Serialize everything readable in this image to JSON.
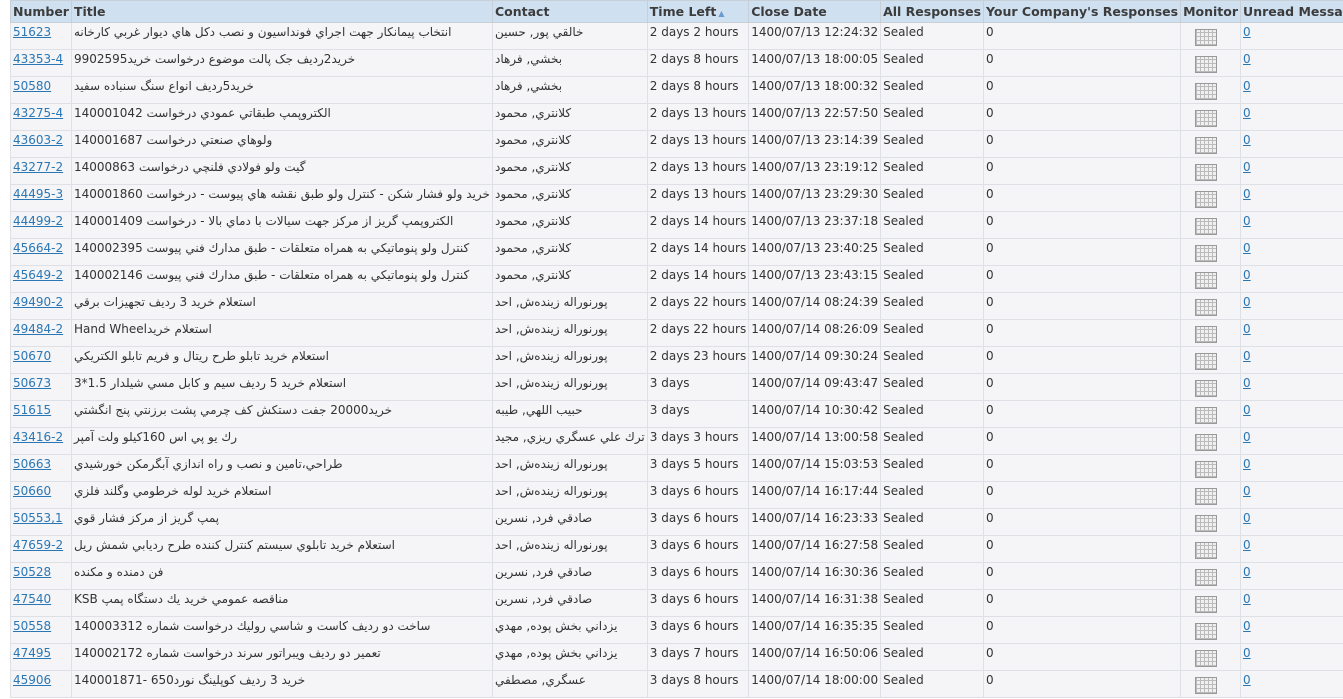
{
  "columns": [
    "Number",
    "Title",
    "Contact",
    "Time Left",
    "Close Date",
    "All Responses",
    "Your Company's Responses",
    "Monitor",
    "Unread Messages"
  ],
  "sort_indicator": "▲",
  "rows": [
    {
      "number": "51623",
      "title": "انتخاب پيمانكار جهت اجراي فونداسيون و نصب دكل هاي ديوار غربي كارخانه",
      "contact": "خالقي پور, حسين",
      "time_left": "2 days 2 hours",
      "close_date": "1400/07/13 12:24:32",
      "all": "Sealed",
      "yours": "0",
      "unread": "0"
    },
    {
      "number": "43353-4",
      "title": "خريد2رديف جک پالت موضوع درخواست خريد9902595",
      "contact": "بخشي, فرهاد",
      "time_left": "2 days 8 hours",
      "close_date": "1400/07/13 18:00:05",
      "all": "Sealed",
      "yours": "0",
      "unread": "0"
    },
    {
      "number": "50580",
      "title": "خريد5رديف انواع سنگ سنباده سفيد",
      "contact": "بخشي, فرهاد",
      "time_left": "2 days 8 hours",
      "close_date": "1400/07/13 18:00:32",
      "all": "Sealed",
      "yours": "0",
      "unread": "0"
    },
    {
      "number": "43275-4",
      "title": "الكتروپمپ طبقاتي عمودي درخواست 140001042",
      "contact": "كلانتري, محمود",
      "time_left": "2 days 13 hours",
      "close_date": "1400/07/13 22:57:50",
      "all": "Sealed",
      "yours": "0",
      "unread": "0"
    },
    {
      "number": "43603-2",
      "title": "ولوهاي صنعتي درخواست 140001687",
      "contact": "كلانتري, محمود",
      "time_left": "2 days 13 hours",
      "close_date": "1400/07/13 23:14:39",
      "all": "Sealed",
      "yours": "0",
      "unread": "0"
    },
    {
      "number": "43277-2",
      "title": "گيت ولو فولادي فلنچي درخواست 14000863",
      "contact": "كلانتري, محمود",
      "time_left": "2 days 13 hours",
      "close_date": "1400/07/13 23:19:12",
      "all": "Sealed",
      "yours": "0",
      "unread": "0"
    },
    {
      "number": "44495-3",
      "title": "خريد ولو فشار شكن - كنترل ولو طبق نقشه هاي پيوست - درخواست 140001860",
      "contact": "كلانتري, محمود",
      "time_left": "2 days 13 hours",
      "close_date": "1400/07/13 23:29:30",
      "all": "Sealed",
      "yours": "0",
      "unread": "0"
    },
    {
      "number": "44499-2",
      "title": "الكتروپمپ گريز از مركز جهت سيالات با دماي بالا - درخواست 140001409",
      "contact": "كلانتري, محمود",
      "time_left": "2 days 14 hours",
      "close_date": "1400/07/13 23:37:18",
      "all": "Sealed",
      "yours": "0",
      "unread": "0"
    },
    {
      "number": "45664-2",
      "title": "كنترل ولو پنوماتيكي به همراه متعلقات - طبق مدارك فني پيوست 140002395",
      "contact": "كلانتري, محمود",
      "time_left": "2 days 14 hours",
      "close_date": "1400/07/13 23:40:25",
      "all": "Sealed",
      "yours": "0",
      "unread": "0"
    },
    {
      "number": "45649-2",
      "title": "كنترل ولو پنوماتيكي به همراه متعلقات - طبق مدارك فني پيوست 140002146",
      "contact": "كلانتري, محمود",
      "time_left": "2 days 14 hours",
      "close_date": "1400/07/13 23:43:15",
      "all": "Sealed",
      "yours": "0",
      "unread": "0"
    },
    {
      "number": "49490-2",
      "title": "استعلام خريد 3 رديف تجهيزات برقي",
      "contact": "پورنوراله زينده‌ش, احد",
      "time_left": "2 days 22 hours",
      "close_date": "1400/07/14 08:24:39",
      "all": "Sealed",
      "yours": "0",
      "unread": "0"
    },
    {
      "number": "49484-2",
      "title": "استعلام خريدHand Wheel",
      "contact": "پورنوراله زينده‌ش, احد",
      "time_left": "2 days 22 hours",
      "close_date": "1400/07/14 08:26:09",
      "all": "Sealed",
      "yours": "0",
      "unread": "0"
    },
    {
      "number": "50670",
      "title": "استعلام خريد تابلو طرح ريتال و فريم تابلو الكتريكي",
      "contact": "پورنوراله زينده‌ش, احد",
      "time_left": "2 days 23 hours",
      "close_date": "1400/07/14 09:30:24",
      "all": "Sealed",
      "yours": "0",
      "unread": "0"
    },
    {
      "number": "50673",
      "title": "استعلام خريد 5 رديف سيم و كابل مسي شيلدار 1.5*3",
      "contact": "پورنوراله زينده‌ش, احد",
      "time_left": "3 days",
      "close_date": "1400/07/14 09:43:47",
      "all": "Sealed",
      "yours": "0",
      "unread": "0"
    },
    {
      "number": "51615",
      "title": "خريد20000 جفت دستكش كف چرمي پشت برزنتي پنج انگشتي",
      "contact": "حبيب اللهي, طيبه",
      "time_left": "3 days",
      "close_date": "1400/07/14 10:30:42",
      "all": "Sealed",
      "yours": "0",
      "unread": "0"
    },
    {
      "number": "43416-2",
      "title": "رك يو پي اس 160كيلو ولت آمپر",
      "contact": "ترك علي عسگري ريزي, مجيد",
      "time_left": "3 days 3 hours",
      "close_date": "1400/07/14 13:00:58",
      "all": "Sealed",
      "yours": "0",
      "unread": "0"
    },
    {
      "number": "50663",
      "title": "طراحي،تامين و نصب و راه اندازي آبگرمكن خورشيدي",
      "contact": "پورنوراله زينده‌ش, احد",
      "time_left": "3 days 5 hours",
      "close_date": "1400/07/14 15:03:53",
      "all": "Sealed",
      "yours": "0",
      "unread": "0"
    },
    {
      "number": "50660",
      "title": "استعلام خريد لوله خرطومي وگلند فلزي",
      "contact": "پورنوراله زينده‌ش, احد",
      "time_left": "3 days 6 hours",
      "close_date": "1400/07/14 16:17:44",
      "all": "Sealed",
      "yours": "0",
      "unread": "0"
    },
    {
      "number": "50553,1",
      "title": "پمپ گريز از مركز فشار قوي",
      "contact": "صادقي فرد, نسرين",
      "time_left": "3 days 6 hours",
      "close_date": "1400/07/14 16:23:33",
      "all": "Sealed",
      "yours": "0",
      "unread": "0"
    },
    {
      "number": "47659-2",
      "title": "استعلام خريد تابلوي سيستم كنترل كننده طرح رديابي شمش ريل",
      "contact": "پورنوراله زينده‌ش, احد",
      "time_left": "3 days 6 hours",
      "close_date": "1400/07/14 16:27:58",
      "all": "Sealed",
      "yours": "0",
      "unread": "0"
    },
    {
      "number": "50528",
      "title": "فن دمنده و مكنده",
      "contact": "صادقي فرد, نسرين",
      "time_left": "3 days 6 hours",
      "close_date": "1400/07/14 16:30:36",
      "all": "Sealed",
      "yours": "0",
      "unread": "0"
    },
    {
      "number": "47540",
      "title": "KSB مناقصه عمومي خريد يك دستگاه پمپ",
      "contact": "صادقي فرد, نسرين",
      "time_left": "3 days 6 hours",
      "close_date": "1400/07/14 16:31:38",
      "all": "Sealed",
      "yours": "0",
      "unread": "0"
    },
    {
      "number": "50558",
      "title": "ساخت دو رديف كاست و شاسي روليك درخواست شماره 140003312",
      "contact": "يزداني بخش پوده, مهدي",
      "time_left": "3 days 6 hours",
      "close_date": "1400/07/14 16:35:35",
      "all": "Sealed",
      "yours": "0",
      "unread": "0"
    },
    {
      "number": "47495",
      "title": "تعمير دو رديف ويبراتور سرند درخواست شماره 140002172",
      "contact": "يزداني بخش پوده, مهدي",
      "time_left": "3 days 7 hours",
      "close_date": "1400/07/14 16:50:06",
      "all": "Sealed",
      "yours": "0",
      "unread": "0"
    },
    {
      "number": "45906",
      "title": "خريد 3 رديف كوپلينگ نورد650 -140001871",
      "contact": "عسگري, مصطفي",
      "time_left": "3 days 8 hours",
      "close_date": "1400/07/14 18:00:00",
      "all": "Sealed",
      "yours": "0",
      "unread": "0"
    }
  ]
}
